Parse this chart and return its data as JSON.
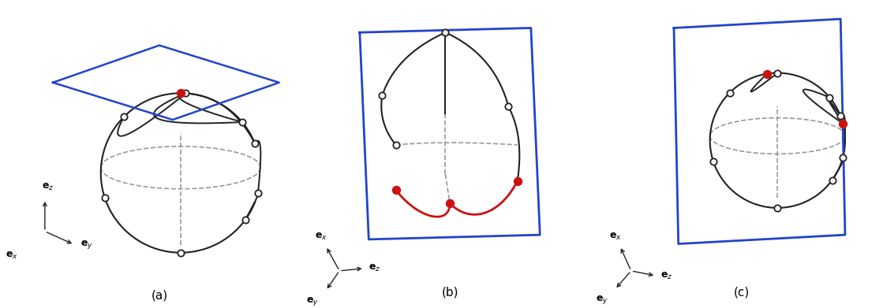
{
  "bg_color": "#ffffff",
  "line_color": "#222222",
  "blue_color": "#2244cc",
  "red_color": "#cc1111",
  "node_face": "#ffffff",
  "node_edge": "#222222",
  "red_node_face": "#cc1111",
  "dashed_color": "#999999",
  "caption_a": "(a)",
  "caption_b": "(b)",
  "caption_c": "(c)"
}
